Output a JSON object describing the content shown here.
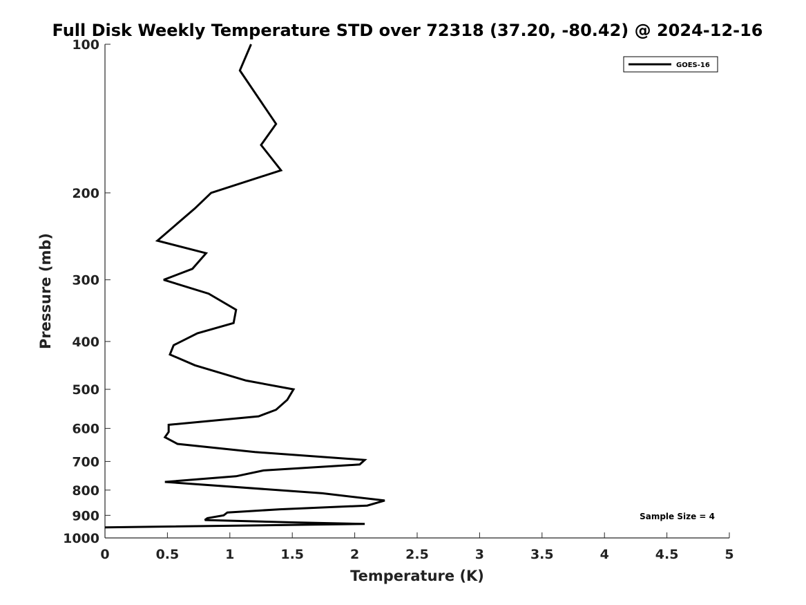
{
  "chart_data": {
    "type": "line",
    "title": "Full Disk Weekly Temperature STD over 72318 (37.20, -80.42) @ 2024-12-16",
    "xlabel": "Temperature (K)",
    "ylabel": "Pressure (mb)",
    "xlim": [
      0,
      5
    ],
    "ylim": [
      1000,
      100
    ],
    "y_scale": "log",
    "y_reversed": true,
    "x_ticks": [
      "0",
      "0.5",
      "1",
      "1.5",
      "2",
      "2.5",
      "3",
      "3.5",
      "4",
      "4.5",
      "5"
    ],
    "y_ticks": [
      "100",
      "200",
      "300",
      "400",
      "500",
      "600",
      "700",
      "800",
      "900",
      "1000"
    ],
    "grid": false,
    "legend_position": "top-right",
    "annotation": "Sample Size = 4",
    "series": [
      {
        "name": "GOES-16",
        "color": "#000000",
        "x": [
          1.17,
          1.08,
          1.37,
          1.25,
          1.41,
          0.85,
          0.72,
          0.42,
          0.81,
          0.7,
          0.47,
          0.83,
          1.05,
          1.03,
          0.74,
          0.55,
          0.52,
          0.72,
          1.13,
          1.51,
          1.46,
          1.37,
          1.23,
          0.51,
          0.51,
          0.48,
          0.58,
          1.2,
          2.08,
          2.04,
          1.27,
          1.05,
          0.48,
          1.74,
          2.24,
          2.1,
          1.4,
          0.98,
          0.95,
          0.82,
          0.8,
          1.5,
          2.08,
          0.0
        ],
        "y": [
          100,
          113,
          145,
          160,
          180,
          200,
          215,
          250,
          265,
          285,
          300,
          320,
          345,
          367,
          385,
          407,
          425,
          447,
          480,
          500,
          525,
          550,
          567,
          590,
          610,
          625,
          645,
          670,
          695,
          710,
          730,
          750,
          770,
          812,
          840,
          860,
          875,
          888,
          900,
          912,
          920,
          930,
          937,
          952
        ]
      }
    ]
  }
}
